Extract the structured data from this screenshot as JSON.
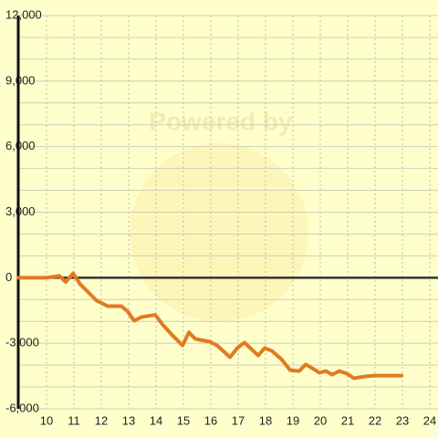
{
  "chart_data": {
    "type": "line",
    "watermark": "Powered by",
    "x": [
      8.97,
      10,
      10.47,
      10.7,
      10.97,
      11.23,
      11.53,
      11.83,
      12.23,
      12.73,
      12.97,
      13.2,
      13.47,
      13.97,
      14.23,
      14.57,
      14.97,
      15.2,
      15.43,
      15.97,
      16.23,
      16.7,
      16.97,
      17.23,
      17.73,
      17.97,
      18.23,
      18.57,
      18.9,
      19.23,
      19.47,
      19.7,
      19.97,
      20.2,
      20.43,
      20.7,
      20.97,
      21.23,
      21.63,
      21.97,
      22.97
    ],
    "series": [
      {
        "color": "#e07b20",
        "values": [
          0,
          0,
          80,
          -200,
          200,
          -300,
          -670,
          -1050,
          -1300,
          -1300,
          -1550,
          -1970,
          -1800,
          -1700,
          -2130,
          -2600,
          -3100,
          -2500,
          -2800,
          -2930,
          -3100,
          -3640,
          -3220,
          -2970,
          -3560,
          -3220,
          -3350,
          -3720,
          -4230,
          -4270,
          -3970,
          -4140,
          -4350,
          -4270,
          -4440,
          -4270,
          -4390,
          -4600,
          -4520,
          -4480,
          -4480
        ]
      }
    ],
    "xlim": [
      9,
      24
    ],
    "xticks": [
      10,
      11,
      12,
      13,
      14,
      15,
      16,
      17,
      18,
      19,
      20,
      21,
      22,
      23,
      24
    ],
    "ylim": [
      -6000,
      12000
    ],
    "yticks": [
      {
        "value": -6000,
        "label": "-6,000"
      },
      {
        "value": -3000,
        "label": "-3,000"
      },
      0,
      {
        "value": 3000,
        "label": "3,000"
      },
      {
        "value": 6000,
        "label": "6,000"
      },
      {
        "value": 9000,
        "label": "9,000"
      },
      {
        "value": 12000,
        "label": "12,000"
      }
    ],
    "yminorticks": [
      -5000,
      -4000,
      -2000,
      -1000,
      1000,
      2000,
      4000,
      5000,
      7000,
      8000,
      10000,
      11000
    ],
    "grid": true
  }
}
